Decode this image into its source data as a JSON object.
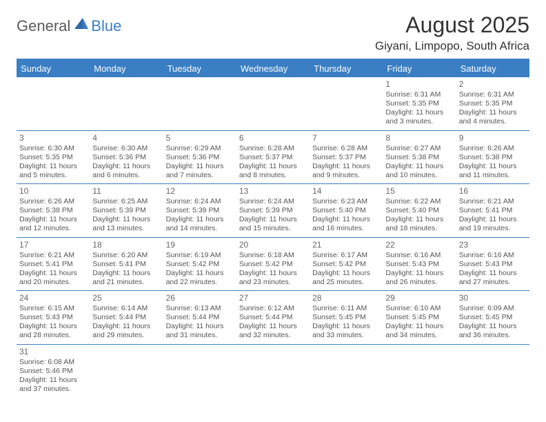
{
  "brand": {
    "part1": "General",
    "part2": "Blue"
  },
  "title": "August 2025",
  "location": "Giyani, Limpopo, South Africa",
  "colors": {
    "accent": "#3a7fc4",
    "text": "#333333",
    "cellText": "#555555",
    "background": "#ffffff"
  },
  "dayHeaders": [
    "Sunday",
    "Monday",
    "Tuesday",
    "Wednesday",
    "Thursday",
    "Friday",
    "Saturday"
  ],
  "weeks": [
    [
      null,
      null,
      null,
      null,
      null,
      {
        "n": "1",
        "sr": "6:31 AM",
        "ss": "5:35 PM",
        "dl": "11 hours and 3 minutes."
      },
      {
        "n": "2",
        "sr": "6:31 AM",
        "ss": "5:35 PM",
        "dl": "11 hours and 4 minutes."
      }
    ],
    [
      {
        "n": "3",
        "sr": "6:30 AM",
        "ss": "5:35 PM",
        "dl": "11 hours and 5 minutes."
      },
      {
        "n": "4",
        "sr": "6:30 AM",
        "ss": "5:36 PM",
        "dl": "11 hours and 6 minutes."
      },
      {
        "n": "5",
        "sr": "6:29 AM",
        "ss": "5:36 PM",
        "dl": "11 hours and 7 minutes."
      },
      {
        "n": "6",
        "sr": "6:28 AM",
        "ss": "5:37 PM",
        "dl": "11 hours and 8 minutes."
      },
      {
        "n": "7",
        "sr": "6:28 AM",
        "ss": "5:37 PM",
        "dl": "11 hours and 9 minutes."
      },
      {
        "n": "8",
        "sr": "6:27 AM",
        "ss": "5:38 PM",
        "dl": "11 hours and 10 minutes."
      },
      {
        "n": "9",
        "sr": "6:26 AM",
        "ss": "5:38 PM",
        "dl": "11 hours and 11 minutes."
      }
    ],
    [
      {
        "n": "10",
        "sr": "6:26 AM",
        "ss": "5:38 PM",
        "dl": "11 hours and 12 minutes."
      },
      {
        "n": "11",
        "sr": "6:25 AM",
        "ss": "5:39 PM",
        "dl": "11 hours and 13 minutes."
      },
      {
        "n": "12",
        "sr": "6:24 AM",
        "ss": "5:39 PM",
        "dl": "11 hours and 14 minutes."
      },
      {
        "n": "13",
        "sr": "6:24 AM",
        "ss": "5:39 PM",
        "dl": "11 hours and 15 minutes."
      },
      {
        "n": "14",
        "sr": "6:23 AM",
        "ss": "5:40 PM",
        "dl": "11 hours and 16 minutes."
      },
      {
        "n": "15",
        "sr": "6:22 AM",
        "ss": "5:40 PM",
        "dl": "11 hours and 18 minutes."
      },
      {
        "n": "16",
        "sr": "6:21 AM",
        "ss": "5:41 PM",
        "dl": "11 hours and 19 minutes."
      }
    ],
    [
      {
        "n": "17",
        "sr": "6:21 AM",
        "ss": "5:41 PM",
        "dl": "11 hours and 20 minutes."
      },
      {
        "n": "18",
        "sr": "6:20 AM",
        "ss": "5:41 PM",
        "dl": "11 hours and 21 minutes."
      },
      {
        "n": "19",
        "sr": "6:19 AM",
        "ss": "5:42 PM",
        "dl": "11 hours and 22 minutes."
      },
      {
        "n": "20",
        "sr": "6:18 AM",
        "ss": "5:42 PM",
        "dl": "11 hours and 23 minutes."
      },
      {
        "n": "21",
        "sr": "6:17 AM",
        "ss": "5:42 PM",
        "dl": "11 hours and 25 minutes."
      },
      {
        "n": "22",
        "sr": "6:16 AM",
        "ss": "5:43 PM",
        "dl": "11 hours and 26 minutes."
      },
      {
        "n": "23",
        "sr": "6:16 AM",
        "ss": "5:43 PM",
        "dl": "11 hours and 27 minutes."
      }
    ],
    [
      {
        "n": "24",
        "sr": "6:15 AM",
        "ss": "5:43 PM",
        "dl": "11 hours and 28 minutes."
      },
      {
        "n": "25",
        "sr": "6:14 AM",
        "ss": "5:44 PM",
        "dl": "11 hours and 29 minutes."
      },
      {
        "n": "26",
        "sr": "6:13 AM",
        "ss": "5:44 PM",
        "dl": "11 hours and 31 minutes."
      },
      {
        "n": "27",
        "sr": "6:12 AM",
        "ss": "5:44 PM",
        "dl": "11 hours and 32 minutes."
      },
      {
        "n": "28",
        "sr": "6:11 AM",
        "ss": "5:45 PM",
        "dl": "11 hours and 33 minutes."
      },
      {
        "n": "29",
        "sr": "6:10 AM",
        "ss": "5:45 PM",
        "dl": "11 hours and 34 minutes."
      },
      {
        "n": "30",
        "sr": "6:09 AM",
        "ss": "5:45 PM",
        "dl": "11 hours and 36 minutes."
      }
    ],
    [
      {
        "n": "31",
        "sr": "6:08 AM",
        "ss": "5:46 PM",
        "dl": "11 hours and 37 minutes."
      },
      null,
      null,
      null,
      null,
      null,
      null
    ]
  ],
  "labels": {
    "sunrise": "Sunrise:",
    "sunset": "Sunset:",
    "daylight": "Daylight:"
  }
}
